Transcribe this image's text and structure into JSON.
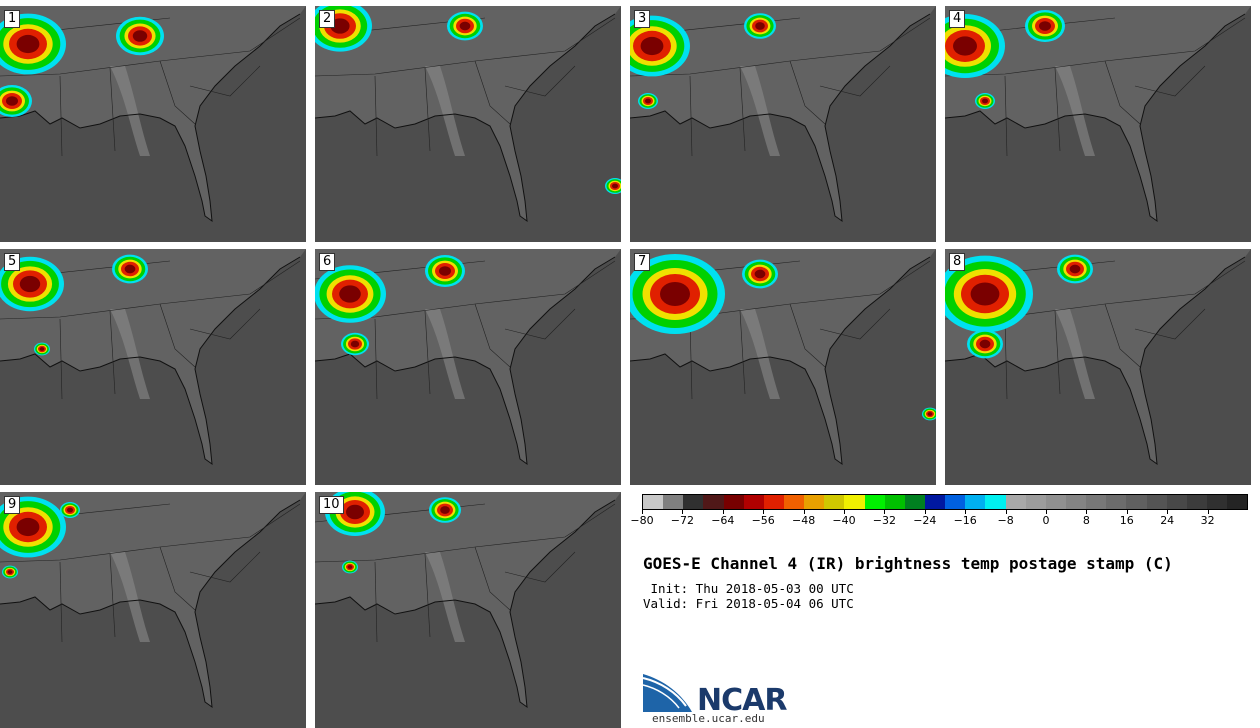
{
  "panels": [
    {
      "label": "1"
    },
    {
      "label": "2"
    },
    {
      "label": "3"
    },
    {
      "label": "4"
    },
    {
      "label": "5"
    },
    {
      "label": "6"
    },
    {
      "label": "7"
    },
    {
      "label": "8"
    },
    {
      "label": "9"
    },
    {
      "label": "10"
    }
  ],
  "colorbar": {
    "colors": [
      "#c8c8c8",
      "#808080",
      "#303030",
      "#501818",
      "#780000",
      "#b00000",
      "#e02000",
      "#f06000",
      "#e8a000",
      "#d0c800",
      "#f0f000",
      "#00f000",
      "#00c000",
      "#008020",
      "#0018a0",
      "#0060e0",
      "#00b0f0",
      "#00f0f0",
      "#a8a8a8",
      "#9c9c9c",
      "#909090",
      "#848484",
      "#787878",
      "#6c6c6c",
      "#606060",
      "#545454",
      "#484848",
      "#3c3c3c",
      "#303030",
      "#242424"
    ],
    "tick_labels": [
      "−80",
      "−72",
      "−64",
      "−56",
      "−48",
      "−40",
      "−32",
      "−24",
      "−16",
      "−8",
      "0",
      "8",
      "16",
      "24",
      "32"
    ],
    "min": -80,
    "max": 40
  },
  "title": "GOES-E Channel 4 (IR) brightness temp postage stamp (C)",
  "init_line": " Init: Thu 2018-05-03 00 UTC",
  "valid_line": "Valid: Fri 2018-05-04 06 UTC",
  "logo": {
    "name": "NCAR",
    "url": "ensemble.ucar.edu"
  }
}
